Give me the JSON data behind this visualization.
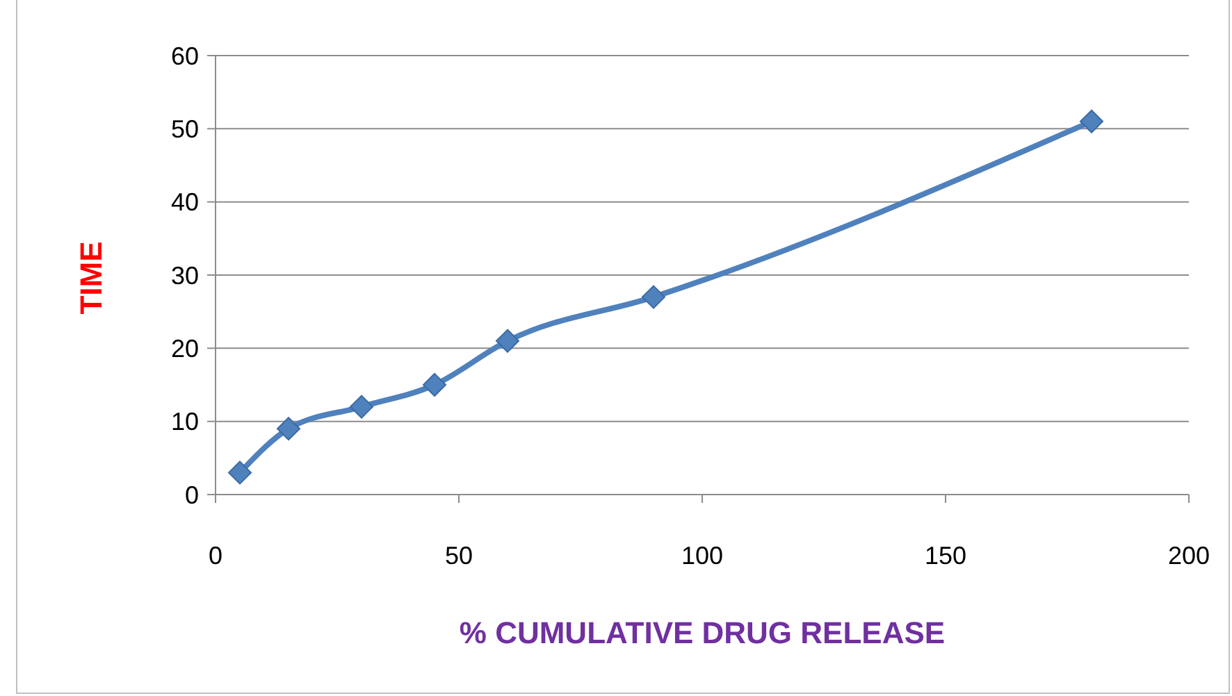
{
  "chart_data": {
    "type": "line",
    "xlabel": "% CUMULATIVE DRUG RELEASE",
    "ylabel": "TIME",
    "x": [
      5,
      15,
      30,
      45,
      60,
      90,
      180
    ],
    "series": [
      {
        "color": "#4f81bd",
        "values": [
          3,
          9,
          12,
          15,
          21,
          27,
          51
        ]
      }
    ],
    "xlim": [
      0,
      200
    ],
    "xticks": [
      0,
      50,
      100,
      150,
      200
    ],
    "ylim": [
      0,
      60
    ],
    "yticks": [
      0,
      10,
      20,
      30,
      40,
      50,
      60
    ],
    "grid": "y",
    "marker": "diamond",
    "line_style": "solid"
  }
}
